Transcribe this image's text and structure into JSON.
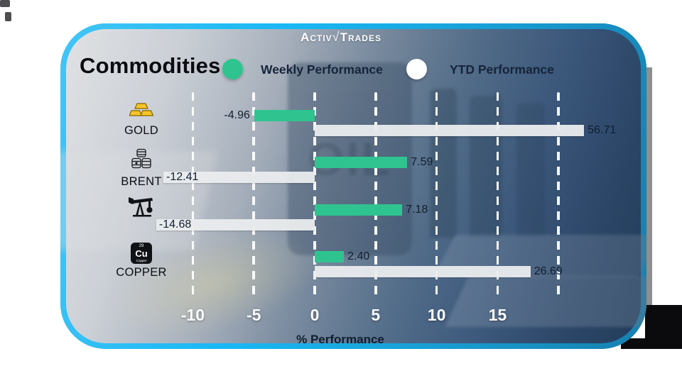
{
  "colors": {
    "card_border": "#19b8f4",
    "weekly_green": "#2fc48f",
    "ytd_white": "#eaecee",
    "axis_text": "#ffffff",
    "value_text": "#111f2e"
  },
  "brand": {
    "word1": "Activ",
    "mark": "√",
    "word2": "Trades"
  },
  "header": {
    "title": "Commodities",
    "legend": [
      {
        "label": "Weekly Performance",
        "color": "#2fc48f"
      },
      {
        "label": "YTD Performance",
        "color": "#ffffff"
      }
    ]
  },
  "background": {
    "barrel_text": "OIL"
  },
  "element_tile": {
    "number": "29",
    "symbol": "Cu",
    "name": "Copper"
  },
  "chart_data": {
    "type": "bar",
    "orientation": "horizontal",
    "title": "Commodities",
    "xlabel": "% Performance",
    "x_ticks": [
      "-10",
      "-5",
      "0",
      "5",
      "10",
      "15"
    ],
    "tick_units": [
      -10,
      -5,
      0,
      5,
      10,
      15
    ],
    "gridline_units": [
      -10,
      -5,
      0,
      5,
      10,
      15,
      20
    ],
    "xlim": [
      -15,
      22
    ],
    "grid": "dashed-vertical-white",
    "legend_position": "top",
    "categories": [
      "GOLD",
      "BRENT",
      "",
      "COPPER"
    ],
    "series": [
      {
        "name": "Weekly Performance",
        "color": "#2fc48f",
        "values": [
          -4.96,
          7.59,
          7.18,
          2.4
        ]
      },
      {
        "name": "YTD Performance",
        "color": "#eaecee",
        "values": [
          56.71,
          -12.41,
          -14.68,
          26.69
        ]
      }
    ],
    "rows": [
      {
        "label": "GOLD",
        "icon": "gold-bars-icon",
        "weekly": {
          "value": -4.96,
          "label": "-4.96",
          "display_units": -4.96
        },
        "ytd": {
          "value": 56.71,
          "label": "56.71",
          "display_units": 22.1
        }
      },
      {
        "label": "BRENT",
        "icon": "oil-barrels-icon",
        "weekly": {
          "value": 7.59,
          "label": "7.59",
          "display_units": 7.59
        },
        "ytd": {
          "value": -12.41,
          "label": "-12.41",
          "display_units": -12.41
        }
      },
      {
        "label": "",
        "icon": "pump-jack-icon",
        "weekly": {
          "value": 7.18,
          "label": "7.18",
          "display_units": 7.18
        },
        "ytd": {
          "value": -14.68,
          "label": "-14.68",
          "display_units": -13.0
        }
      },
      {
        "label": "COPPER",
        "icon": "copper-element-icon",
        "weekly": {
          "value": 2.4,
          "label": "2.40",
          "display_units": 2.4
        },
        "ytd": {
          "value": 26.69,
          "label": "26.69",
          "display_units": 17.7
        }
      }
    ]
  }
}
